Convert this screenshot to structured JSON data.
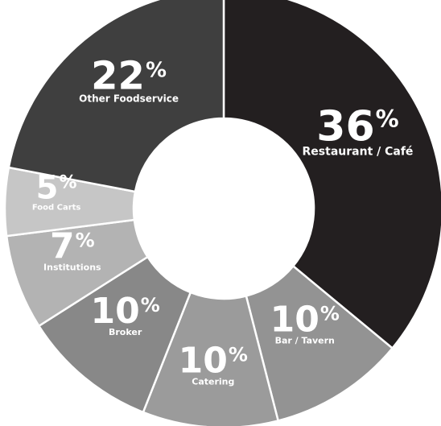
{
  "chart_data": {
    "type": "pie",
    "title": "",
    "categories": [
      "Restaurant / Café",
      "Bar / Tavern",
      "Catering",
      "Broker",
      "Institutions",
      "Food Carts",
      "Other Foodservice"
    ],
    "values": [
      36,
      10,
      10,
      10,
      7,
      5,
      22
    ],
    "value_labels": [
      "36",
      "10",
      "10",
      "10",
      "7",
      "5",
      "22"
    ],
    "percent_sign": "%",
    "colors": [
      "#231f20",
      "#939393",
      "#9b9b9b",
      "#888888",
      "#b3b3b3",
      "#c6c6c6",
      "#3f3f3f"
    ],
    "hole_color": "#ffffff",
    "legend": "none"
  }
}
